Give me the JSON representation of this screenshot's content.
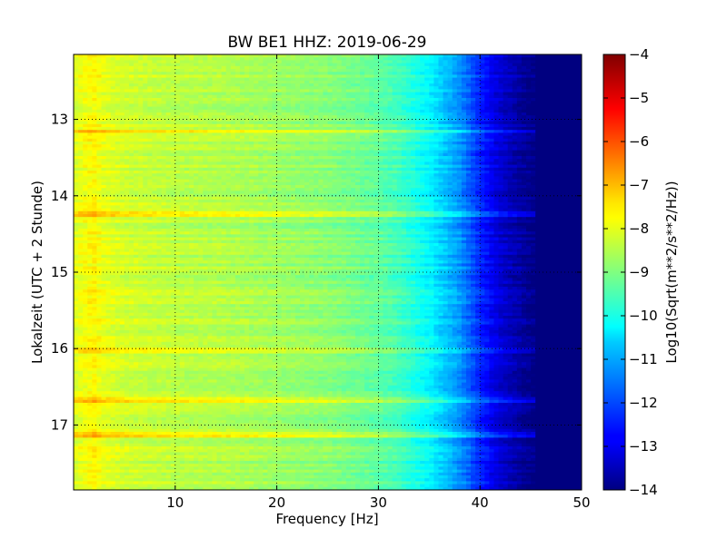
{
  "chart_data": {
    "type": "heatmap",
    "title": "BW BE1 HHZ: 2019-06-29",
    "xlabel": "Frequency [Hz]",
    "ylabel": "Lokalzeit (UTC + 2 Stunde)",
    "colorbar_label": "Log10(Sqrt(m**2/s**2/Hz))",
    "colormap": "jet",
    "xlim": [
      0,
      50
    ],
    "ylim": [
      12.15,
      17.85
    ],
    "y_inverted": true,
    "clim": [
      -14,
      -4
    ],
    "grid": "dotted",
    "x_ticks": [
      10,
      20,
      30,
      40,
      50
    ],
    "x_tick_labels": [
      "10",
      "20",
      "30",
      "40",
      "50"
    ],
    "y_ticks": [
      13,
      14,
      15,
      16,
      17
    ],
    "y_tick_labels": [
      "13",
      "14",
      "15",
      "16",
      "17"
    ],
    "colorbar_ticks": [
      -4,
      -5,
      -6,
      -7,
      -8,
      -9,
      -10,
      -11,
      -12,
      -13,
      -14
    ],
    "colorbar_tick_labels": [
      "−4",
      "−5",
      "−6",
      "−7",
      "−8",
      "−9",
      "−10",
      "−11",
      "−12",
      "−13",
      "−14"
    ],
    "spectrum_profile": {
      "frequency_hz": [
        0,
        1,
        2,
        3,
        5,
        10,
        15,
        20,
        25,
        30,
        32,
        35,
        38,
        40,
        42,
        44,
        45,
        46,
        50
      ],
      "log10_amplitude": [
        -8.1,
        -7.9,
        -7.7,
        -8.0,
        -8.2,
        -8.4,
        -8.5,
        -8.7,
        -8.9,
        -9.3,
        -9.6,
        -10.3,
        -11.3,
        -12.4,
        -13.2,
        -13.7,
        -13.9,
        -14,
        -14
      ]
    },
    "bright_band_times": [
      13.15,
      14.25,
      16.02,
      16.68,
      17.12
    ]
  }
}
